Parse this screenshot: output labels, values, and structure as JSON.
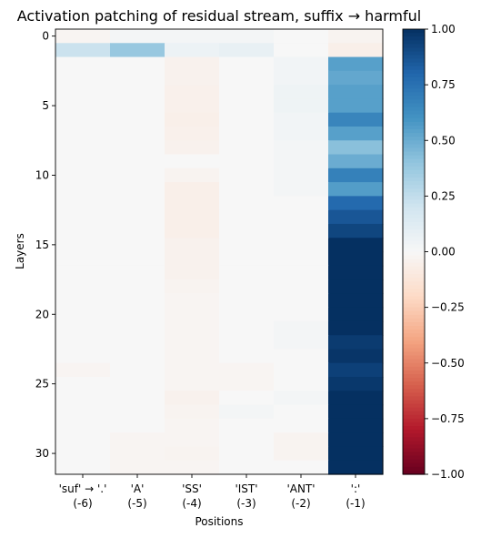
{
  "chart_data": {
    "type": "heatmap",
    "title": "Activation patching of residual stream, suffix → harmful",
    "xlabel": "Positions",
    "ylabel": "Layers",
    "x_tick_labels": [
      [
        "'suf' → '.'",
        "(-6)"
      ],
      [
        "'A'",
        "(-5)"
      ],
      [
        "'SS'",
        "(-4)"
      ],
      [
        "'IST'",
        "(-3)"
      ],
      [
        "'ANT'",
        "(-2)"
      ],
      [
        "':'",
        "(-1)"
      ]
    ],
    "y_ticks": [
      0,
      5,
      10,
      15,
      20,
      25,
      30
    ],
    "n_layers": 32,
    "colormap": "RdBu",
    "vmin": -1.0,
    "vmax": 1.0,
    "colorbar_ticks": [
      1.0,
      0.75,
      0.5,
      0.25,
      0.0,
      -0.25,
      -0.5,
      -0.75,
      -1.0
    ],
    "colorbar_tick_labels": [
      "1.00",
      "0.75",
      "0.50",
      "0.25",
      "0.00",
      "−0.25",
      "−0.50",
      "−0.75",
      "−1.00"
    ],
    "values": [
      [
        -0.02,
        0.02,
        0.02,
        0.02,
        0.0,
        -0.03
      ],
      [
        0.22,
        0.38,
        0.06,
        0.08,
        0.0,
        -0.06
      ],
      [
        0.0,
        0.0,
        -0.04,
        0.0,
        0.03,
        0.55
      ],
      [
        0.0,
        0.0,
        -0.04,
        0.0,
        0.03,
        0.52
      ],
      [
        0.0,
        0.0,
        -0.05,
        0.0,
        0.05,
        0.55
      ],
      [
        0.0,
        0.0,
        -0.05,
        0.0,
        0.05,
        0.55
      ],
      [
        0.0,
        0.0,
        -0.06,
        0.0,
        0.03,
        0.66
      ],
      [
        0.0,
        0.0,
        -0.05,
        0.0,
        0.03,
        0.55
      ],
      [
        0.0,
        0.0,
        -0.04,
        0.0,
        0.02,
        0.42
      ],
      [
        0.0,
        0.0,
        0.0,
        0.0,
        0.02,
        0.5
      ],
      [
        0.0,
        0.0,
        -0.03,
        0.0,
        0.02,
        0.68
      ],
      [
        0.0,
        0.0,
        -0.06,
        0.0,
        0.02,
        0.56
      ],
      [
        0.0,
        0.0,
        -0.06,
        0.0,
        0.0,
        0.78
      ],
      [
        0.0,
        0.0,
        -0.06,
        0.0,
        0.0,
        0.86
      ],
      [
        0.0,
        0.0,
        -0.06,
        0.0,
        0.0,
        0.92
      ],
      [
        0.0,
        0.0,
        -0.04,
        0.0,
        0.0,
        1.0
      ],
      [
        0.0,
        0.0,
        -0.04,
        0.0,
        0.0,
        1.0
      ],
      [
        0.0,
        0.0,
        -0.04,
        0.0,
        0.0,
        1.0
      ],
      [
        0.0,
        0.0,
        -0.03,
        0.0,
        0.0,
        1.0
      ],
      [
        0.0,
        0.0,
        -0.02,
        0.0,
        0.0,
        1.0
      ],
      [
        0.0,
        0.0,
        -0.02,
        0.0,
        0.0,
        1.0
      ],
      [
        0.0,
        0.0,
        -0.02,
        0.0,
        0.02,
        1.0
      ],
      [
        0.0,
        0.0,
        -0.02,
        0.0,
        0.02,
        0.96
      ],
      [
        0.0,
        0.0,
        -0.02,
        0.0,
        0.0,
        0.98
      ],
      [
        -0.02,
        0.0,
        -0.02,
        -0.02,
        0.0,
        0.94
      ],
      [
        0.0,
        0.0,
        -0.02,
        -0.02,
        0.0,
        0.97
      ],
      [
        0.0,
        0.0,
        -0.04,
        0.0,
        0.02,
        1.0
      ],
      [
        0.0,
        0.0,
        -0.03,
        0.02,
        0.0,
        1.0
      ],
      [
        0.0,
        0.0,
        -0.02,
        0.0,
        0.0,
        1.0
      ],
      [
        0.0,
        -0.02,
        -0.02,
        0.0,
        -0.03,
        1.0
      ],
      [
        0.0,
        -0.02,
        -0.03,
        0.0,
        -0.03,
        1.0
      ],
      [
        0.0,
        -0.02,
        -0.02,
        0.0,
        0.0,
        1.0
      ]
    ]
  }
}
